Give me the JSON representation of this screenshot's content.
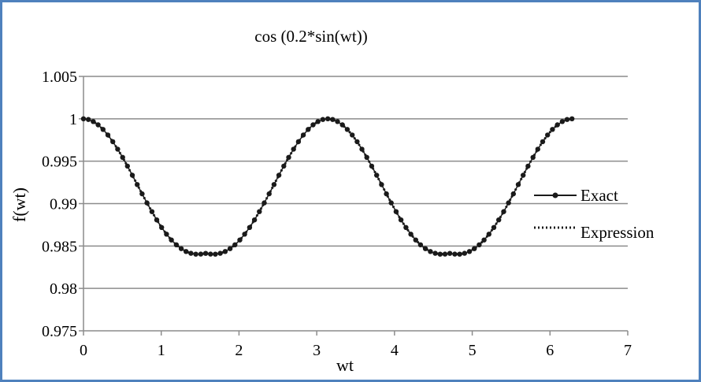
{
  "chart_data": {
    "type": "line",
    "title": "cos (0.2*sin(wt))",
    "xlabel": "wt",
    "ylabel": "f(wt)",
    "xlim": [
      0,
      7
    ],
    "ylim": [
      0.975,
      1.005
    ],
    "x_ticks": [
      "0",
      "1",
      "2",
      "3",
      "4",
      "5",
      "6",
      "7"
    ],
    "y_ticks": [
      "0.975",
      "0.98",
      "0.985",
      "0.99",
      "0.995",
      "1",
      "1.005"
    ],
    "grid": "horizontal",
    "legend_position": "right",
    "series": [
      {
        "name": "Exact",
        "style": "solid line with circle markers",
        "color": "#1a1a1a",
        "x": [
          0.0,
          0.063,
          0.126,
          0.188,
          0.251,
          0.314,
          0.377,
          0.44,
          0.503,
          0.565,
          0.628,
          0.691,
          0.754,
          0.817,
          0.88,
          0.942,
          1.005,
          1.068,
          1.131,
          1.194,
          1.257,
          1.319,
          1.382,
          1.445,
          1.508,
          1.571,
          1.634,
          1.696,
          1.759,
          1.822,
          1.885,
          1.948,
          2.011,
          2.073,
          2.136,
          2.199,
          2.262,
          2.325,
          2.388,
          2.45,
          2.513,
          2.576,
          2.639,
          2.702,
          2.765,
          2.827,
          2.89,
          2.953,
          3.016,
          3.079,
          3.142,
          3.204,
          3.267,
          3.33,
          3.393,
          3.456,
          3.519,
          3.581,
          3.644,
          3.707,
          3.77,
          3.833,
          3.896,
          3.958,
          4.021,
          4.084,
          4.147,
          4.21,
          4.273,
          4.335,
          4.398,
          4.461,
          4.524,
          4.587,
          4.65,
          4.712,
          4.775,
          4.838,
          4.901,
          4.964,
          5.027,
          5.089,
          5.152,
          5.215,
          5.278,
          5.341,
          5.404,
          5.466,
          5.529,
          5.592,
          5.655,
          5.718,
          5.781,
          5.843,
          5.906,
          5.969,
          6.032,
          6.095,
          6.158,
          6.22,
          6.283
        ],
        "values": [
          1.0,
          0.99992,
          0.99968,
          0.99929,
          0.99875,
          0.99809,
          0.9973,
          0.99642,
          0.99545,
          0.99442,
          0.99334,
          0.99225,
          0.99115,
          0.99008,
          0.98905,
          0.98808,
          0.98719,
          0.9864,
          0.98571,
          0.98514,
          0.98469,
          0.98435,
          0.98414,
          0.98404,
          0.98405,
          0.98413,
          0.98405,
          0.98404,
          0.98414,
          0.98435,
          0.98469,
          0.98514,
          0.98571,
          0.9864,
          0.98719,
          0.98808,
          0.98905,
          0.99008,
          0.99115,
          0.99225,
          0.99334,
          0.99442,
          0.99545,
          0.99642,
          0.9973,
          0.99809,
          0.99875,
          0.99929,
          0.99968,
          0.99992,
          1.0,
          0.99992,
          0.99968,
          0.99929,
          0.99875,
          0.99809,
          0.9973,
          0.99642,
          0.99545,
          0.99442,
          0.99334,
          0.99225,
          0.99115,
          0.99008,
          0.98905,
          0.98808,
          0.98719,
          0.9864,
          0.98571,
          0.98514,
          0.98469,
          0.98435,
          0.98414,
          0.98404,
          0.98405,
          0.98413,
          0.98405,
          0.98404,
          0.98414,
          0.98435,
          0.98469,
          0.98514,
          0.98571,
          0.9864,
          0.98719,
          0.98808,
          0.98905,
          0.99008,
          0.99115,
          0.99225,
          0.99334,
          0.99442,
          0.99545,
          0.99642,
          0.9973,
          0.99809,
          0.99875,
          0.99929,
          0.99968,
          0.99992,
          1.0
        ]
      },
      {
        "name": "Expression",
        "style": "dotted line",
        "color": "#1a1a1a"
      }
    ]
  }
}
